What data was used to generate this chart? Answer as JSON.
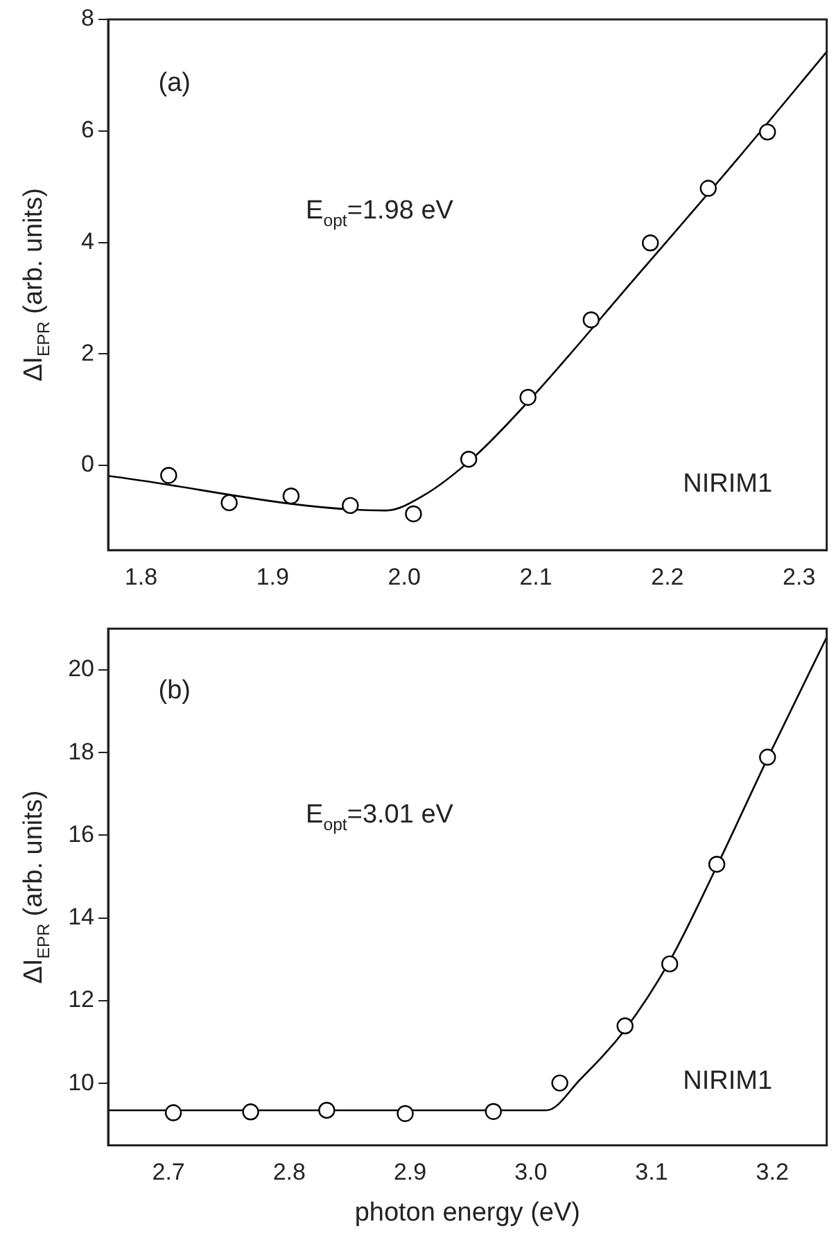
{
  "chart_data": [
    {
      "type": "scatter",
      "ylabel": "ΔI$_{EPR}$ (arb. units)",
      "xlim": [
        1.775,
        2.321
      ],
      "ylim": [
        -1.52,
        8
      ],
      "xticks": [
        1.8,
        1.9,
        {
          "value": 2,
          "label": "2.0"
        },
        2.1,
        2.2,
        2.3
      ],
      "yticks": [
        0,
        2,
        4,
        6,
        8
      ],
      "marker": "circle",
      "legend": false,
      "grid": false,
      "annotations": [
        "(a)",
        "E$_{opt}$=1.98 eV",
        "NIRIM1"
      ],
      "series": [
        {
          "type": "scatter",
          "color": "#000000",
          "x": [
            1.821,
            1.867,
            1.914,
            1.959,
            2.007,
            2.049,
            2.094,
            2.142,
            2.187,
            2.231,
            2.276
          ],
          "values": [
            -0.18,
            -0.67,
            -0.55,
            -0.72,
            -0.87,
            0.11,
            1.22,
            2.61,
            3.99,
            4.97,
            5.98
          ]
        },
        {
          "type": "line",
          "color": "#000000",
          "marker": "none",
          "x": [
            1.775,
            1.986,
            2.014,
            2.054,
            2.094,
            2.174,
            2.254,
            2.321
          ],
          "values": [
            -0.19,
            -0.81,
            -0.55,
            0.17,
            1.14,
            3.32,
            5.52,
            7.42
          ]
        }
      ]
    },
    {
      "type": "scatter",
      "xlabel": "photon energy (eV)",
      "ylabel": "ΔI$_{EPR}$ (arb. units)",
      "xlim": [
        2.65,
        3.245
      ],
      "ylim": [
        8.5,
        21
      ],
      "xticks": [
        2.7,
        2.8,
        2.9,
        {
          "value": 3,
          "label": "3.0"
        },
        3.1,
        3.2
      ],
      "yticks": [
        10,
        12,
        14,
        16,
        18,
        20
      ],
      "marker": "circle",
      "legend": false,
      "grid": false,
      "annotations": [
        "(b)",
        "E$_{opt}$=3.01 eV",
        "NIRIM1"
      ],
      "series": [
        {
          "type": "scatter",
          "color": "#000000",
          "x": [
            2.704,
            2.768,
            2.831,
            2.896,
            2.969,
            3.024,
            3.078,
            3.115,
            3.154,
            3.196
          ],
          "values": [
            9.29,
            9.31,
            9.35,
            9.27,
            9.32,
            10.01,
            11.39,
            12.89,
            15.3,
            17.89
          ]
        },
        {
          "type": "line",
          "color": "#000000",
          "marker": "none",
          "x": [
            2.65,
            3.013,
            3.041,
            3.078,
            3.115,
            3.154,
            3.196,
            3.245
          ],
          "values": [
            9.35,
            9.35,
            10.1,
            11.3,
            12.96,
            15.25,
            17.86,
            20.79
          ]
        }
      ]
    }
  ]
}
